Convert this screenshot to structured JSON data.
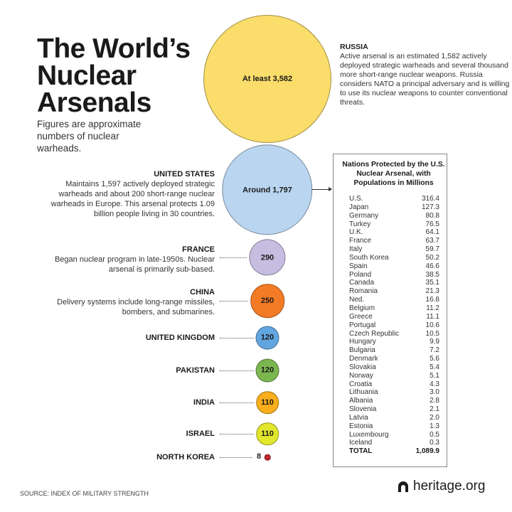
{
  "title": "The World’s Nuclear Arsenals",
  "subtitle": "Figures are approximate numbers of nuclear warheads.",
  "source": "SOURCE: INDEX OF MILITARY STRENGTH",
  "logo": "heritage.org",
  "chart_data": {
    "type": "bubble",
    "title": "The World’s Nuclear Arsenals",
    "nations": [
      {
        "name": "RUSSIA",
        "label": "At least 3,582",
        "value": 3582,
        "color": "#fadd6a",
        "desc": "Active arsenal is an estimated 1,582 actively deployed strategic warheads and several thousand more short-range nuclear weapons. Russia considers NATO a principal adversary and is willing to use its nuclear weapons to counter conventional threats."
      },
      {
        "name": "UNITED STATES",
        "label": "Around 1,797",
        "value": 1797,
        "color": "#b9d5f0",
        "desc": "Maintains 1,597 actively deployed strategic warheads and about 200 short-range nuclear warheads in Europe. This arsenal protects 1.09 billion people living in 30 countries."
      },
      {
        "name": "FRANCE",
        "label": "290",
        "value": 290,
        "color": "#c6bde0",
        "desc": "Began nuclear program in late-1950s. Nuclear arsenal is primarily sub-based."
      },
      {
        "name": "CHINA",
        "label": "250",
        "value": 250,
        "color": "#f47b25",
        "desc": "Delivery systems include long-range missiles, bombers, and submarines."
      },
      {
        "name": "UNITED KINGDOM",
        "label": "120",
        "value": 120,
        "color": "#62a6e0",
        "desc": ""
      },
      {
        "name": "PAKISTAN",
        "label": "120",
        "value": 120,
        "color": "#7bb64f",
        "desc": ""
      },
      {
        "name": "INDIA",
        "label": "110",
        "value": 110,
        "color": "#f9ae1c",
        "desc": ""
      },
      {
        "name": "ISRAEL",
        "label": "110",
        "value": 110,
        "color": "#e2e62c",
        "desc": ""
      },
      {
        "name": "NORTH KOREA",
        "label": "8",
        "value": 8,
        "color": "#c4262e",
        "desc": ""
      }
    ]
  },
  "table": {
    "title": "Nations Protected by the U.S. Nuclear Arsenal, with Populations in Millions",
    "rows": [
      [
        "U.S.",
        "316.4"
      ],
      [
        "Japan",
        "127.3"
      ],
      [
        "Germany",
        "80.8"
      ],
      [
        "Turkey",
        "76.5"
      ],
      [
        "U.K.",
        "64.1"
      ],
      [
        "France",
        "63.7"
      ],
      [
        "Italy",
        "59.7"
      ],
      [
        "South Korea",
        "50.2"
      ],
      [
        "Spain",
        "46.6"
      ],
      [
        "Poland",
        "38.5"
      ],
      [
        "Canada",
        "35.1"
      ],
      [
        "Romania",
        "21.3"
      ],
      [
        "Ned.",
        "16.8"
      ],
      [
        "Belgium",
        "11.2"
      ],
      [
        "Greece",
        "11.1"
      ],
      [
        "Portugal",
        "10.6"
      ],
      [
        "Czech Republic",
        "10.5"
      ],
      [
        "Hungary",
        "9.9"
      ],
      [
        "Bulgaria",
        "7.2"
      ],
      [
        "Denmark",
        "5.6"
      ],
      [
        "Slovakia",
        "5.4"
      ],
      [
        "Norway",
        "5.1"
      ],
      [
        "Croatia",
        "4.3"
      ],
      [
        "Lithuania",
        "3.0"
      ],
      [
        "Albania",
        "2.8"
      ],
      [
        "Slovenia",
        "2.1"
      ],
      [
        "Latvia",
        "2.0"
      ],
      [
        "Estonia",
        "1.3"
      ],
      [
        "Luxembourg",
        "0.5"
      ],
      [
        "Iceland",
        "0.3"
      ]
    ],
    "total_label": "TOTAL",
    "total_value": "1,089.9"
  }
}
